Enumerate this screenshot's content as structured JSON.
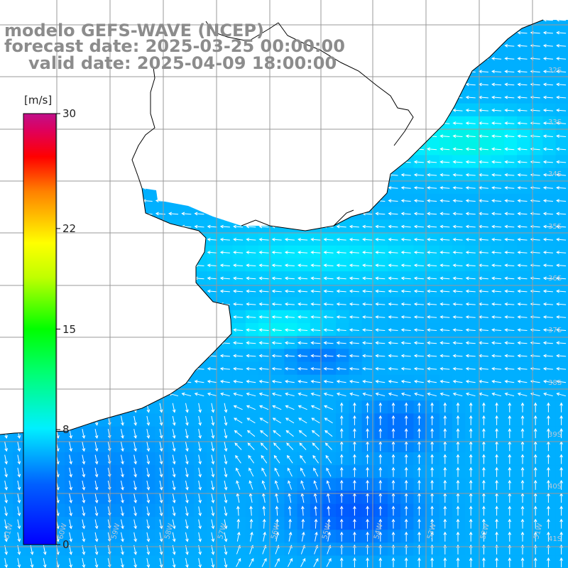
{
  "title": {
    "model": "modelo GEFS-WAVE (NCEP)",
    "forecast_date": "forecast date: 2025-03-25 00:00:00",
    "valid_date": "valid date: 2025-04-09 18:00:00"
  },
  "colorbar": {
    "unit": "[m/s]",
    "ticks": [
      "30",
      "22",
      "15",
      "8",
      "0"
    ],
    "tick_values": [
      30,
      22,
      15,
      8,
      0
    ],
    "min": 0,
    "max": 30,
    "colors": [
      "#0000ff",
      "#0080ff",
      "#00e0ff",
      "#00ff80",
      "#00ff00",
      "#80ff00",
      "#ffff00",
      "#ff8000",
      "#ff0000",
      "#e00060",
      "#c0108a"
    ]
  },
  "map": {
    "lat_labels": [
      "32S",
      "33S",
      "34S",
      "35S",
      "36S",
      "37S",
      "38S",
      "39S",
      "40S",
      "41S"
    ],
    "lon_labels": [
      "61W",
      "60W",
      "59W",
      "58W",
      "57W",
      "56W",
      "55W",
      "54W",
      "53W",
      "52W",
      "51W"
    ],
    "colors": {
      "land": "#ffffff",
      "coast": "#000000",
      "grid": "#9a9a9a",
      "arrows": "#ffffff",
      "weak_wind": "#1a6cff",
      "moderate_wind": "#00c8ff",
      "strong_wind": "#40f0a0"
    }
  }
}
